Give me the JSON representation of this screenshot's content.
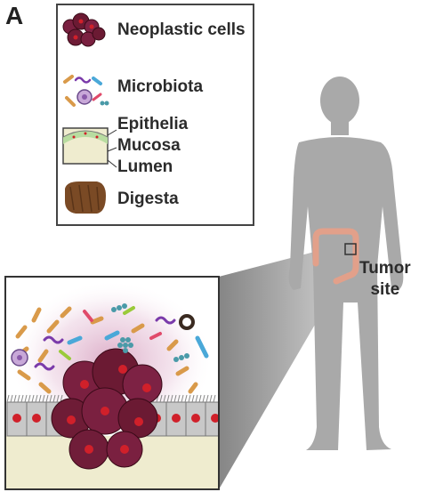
{
  "panel_letter": "A",
  "legend": {
    "items": [
      {
        "label": "Neoplastic cells",
        "icon": "neoplastic-cells-icon"
      },
      {
        "label": "Microbiota",
        "icon": "microbiota-icon"
      },
      {
        "label": "Epithelia",
        "icon": "tissue-layers-icon"
      },
      {
        "label": "Mucosa",
        "icon": "tissue-layers-icon"
      },
      {
        "label": "Lumen",
        "icon": "tissue-layers-icon"
      },
      {
        "label": "Digesta",
        "icon": "digesta-icon"
      }
    ]
  },
  "tumor_site": {
    "line1": "Tumor",
    "line2": "site"
  },
  "colors": {
    "neoplastic": "#6b1a33",
    "epithelium": "#c4c4c4",
    "nucleus": "#d0202a",
    "mucosa": "#efeccf",
    "body": "#a8a8a8",
    "colon": "#e2a08a",
    "digesta": "#7a4a25"
  }
}
